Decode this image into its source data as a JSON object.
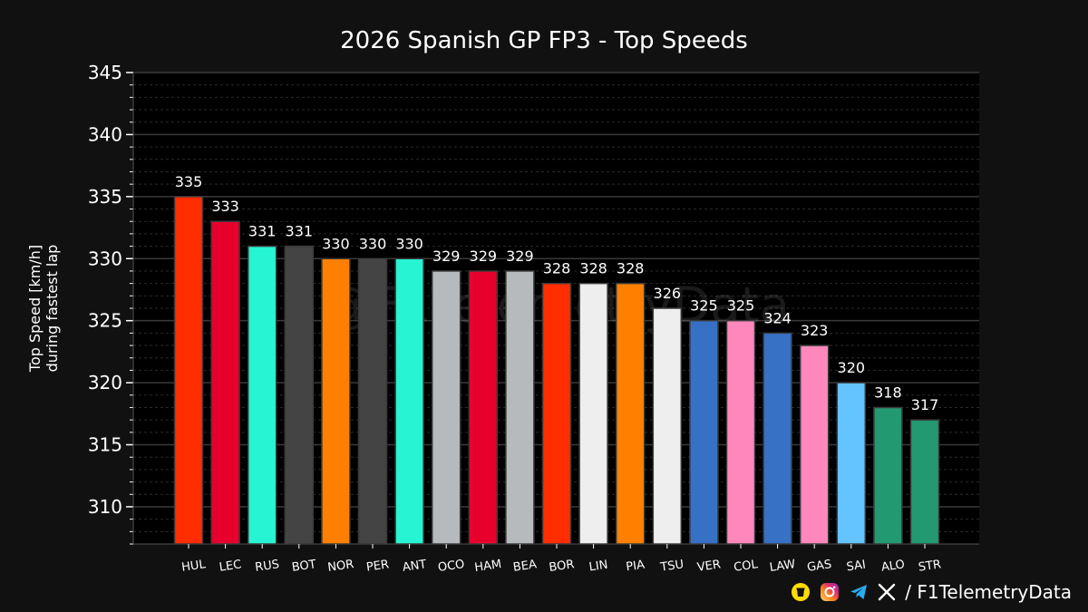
{
  "chart_data": {
    "type": "bar",
    "title": "2026 Spanish GP FP3 - Top Speeds",
    "ylabel_lines": [
      "Top Speed [km/h]",
      "during fastest lap"
    ],
    "xlabel": "",
    "ylim": [
      307,
      345
    ],
    "yticks": [
      310,
      315,
      320,
      325,
      330,
      335,
      340,
      345
    ],
    "grid": true,
    "watermark": "@F1TelemetryData",
    "categories": [
      "HUL",
      "LEC",
      "RUS",
      "BOT",
      "NOR",
      "PER",
      "ANT",
      "OCO",
      "HAM",
      "BEA",
      "BOR",
      "LIN",
      "PIA",
      "TSU",
      "VER",
      "COL",
      "LAW",
      "GAS",
      "SAI",
      "ALO",
      "STR"
    ],
    "values": [
      335,
      333,
      331,
      331,
      330,
      330,
      330,
      329,
      329,
      329,
      328,
      328,
      328,
      326,
      325,
      325,
      324,
      323,
      320,
      318,
      317
    ],
    "colors": [
      "#FF2D00",
      "#E8002D",
      "#27F4D2",
      "#444444",
      "#FF8000",
      "#444444",
      "#27F4D2",
      "#B6BABD",
      "#E8002D",
      "#B6BABD",
      "#FF2D00",
      "#EEEEEE",
      "#FF8000",
      "#EEEEEE",
      "#3671C6",
      "#FF87BC",
      "#3671C6",
      "#FF87BC",
      "#64C4FF",
      "#229971",
      "#229971"
    ]
  },
  "footer": {
    "handle": "/ F1TelemetryData",
    "icons": [
      "buymeacoffee-icon",
      "instagram-icon",
      "telegram-icon",
      "x-icon"
    ]
  }
}
